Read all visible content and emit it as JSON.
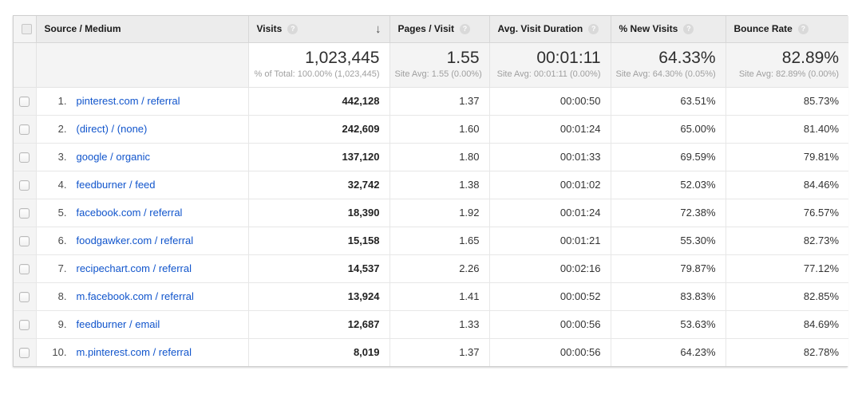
{
  "icons": {
    "help": "?",
    "sort_desc": "↓"
  },
  "colors": {
    "link_blue": "#1155cc",
    "header_bg": "#ececec",
    "summary_bg": "#f4f4f4"
  },
  "table": {
    "columns": [
      {
        "label": "Source / Medium"
      },
      {
        "label": "Visits",
        "help": true,
        "sorted": "desc"
      },
      {
        "label": "Pages / Visit",
        "help": true
      },
      {
        "label": "Avg. Visit Duration",
        "help": true
      },
      {
        "label": "% New Visits",
        "help": true
      },
      {
        "label": "Bounce Rate",
        "help": true
      }
    ],
    "summary": {
      "visits": {
        "value": "1,023,445",
        "sub": "% of Total: 100.00% (1,023,445)"
      },
      "pages": {
        "value": "1.55",
        "sub": "Site Avg: 1.55 (0.00%)"
      },
      "duration": {
        "value": "00:01:11",
        "sub": "Site Avg: 00:01:11 (0.00%)"
      },
      "new_visits": {
        "value": "64.33%",
        "sub": "Site Avg: 64.30% (0.05%)"
      },
      "bounce": {
        "value": "82.89%",
        "sub": "Site Avg: 82.89% (0.00%)"
      }
    },
    "rows": [
      {
        "rank": "1.",
        "source": "pinterest.com / referral",
        "visits": "442,128",
        "pages": "1.37",
        "duration": "00:00:50",
        "new_visits": "63.51%",
        "bounce": "85.73%"
      },
      {
        "rank": "2.",
        "source": "(direct) / (none)",
        "visits": "242,609",
        "pages": "1.60",
        "duration": "00:01:24",
        "new_visits": "65.00%",
        "bounce": "81.40%"
      },
      {
        "rank": "3.",
        "source": "google / organic",
        "visits": "137,120",
        "pages": "1.80",
        "duration": "00:01:33",
        "new_visits": "69.59%",
        "bounce": "79.81%"
      },
      {
        "rank": "4.",
        "source": "feedburner / feed",
        "visits": "32,742",
        "pages": "1.38",
        "duration": "00:01:02",
        "new_visits": "52.03%",
        "bounce": "84.46%"
      },
      {
        "rank": "5.",
        "source": "facebook.com / referral",
        "visits": "18,390",
        "pages": "1.92",
        "duration": "00:01:24",
        "new_visits": "72.38%",
        "bounce": "76.57%"
      },
      {
        "rank": "6.",
        "source": "foodgawker.com / referral",
        "visits": "15,158",
        "pages": "1.65",
        "duration": "00:01:21",
        "new_visits": "55.30%",
        "bounce": "82.73%"
      },
      {
        "rank": "7.",
        "source": "recipechart.com / referral",
        "visits": "14,537",
        "pages": "2.26",
        "duration": "00:02:16",
        "new_visits": "79.87%",
        "bounce": "77.12%"
      },
      {
        "rank": "8.",
        "source": "m.facebook.com / referral",
        "visits": "13,924",
        "pages": "1.41",
        "duration": "00:00:52",
        "new_visits": "83.83%",
        "bounce": "82.85%"
      },
      {
        "rank": "9.",
        "source": "feedburner / email",
        "visits": "12,687",
        "pages": "1.33",
        "duration": "00:00:56",
        "new_visits": "53.63%",
        "bounce": "84.69%"
      },
      {
        "rank": "10.",
        "source": "m.pinterest.com / referral",
        "visits": "8,019",
        "pages": "1.37",
        "duration": "00:00:56",
        "new_visits": "64.23%",
        "bounce": "82.78%"
      }
    ]
  }
}
